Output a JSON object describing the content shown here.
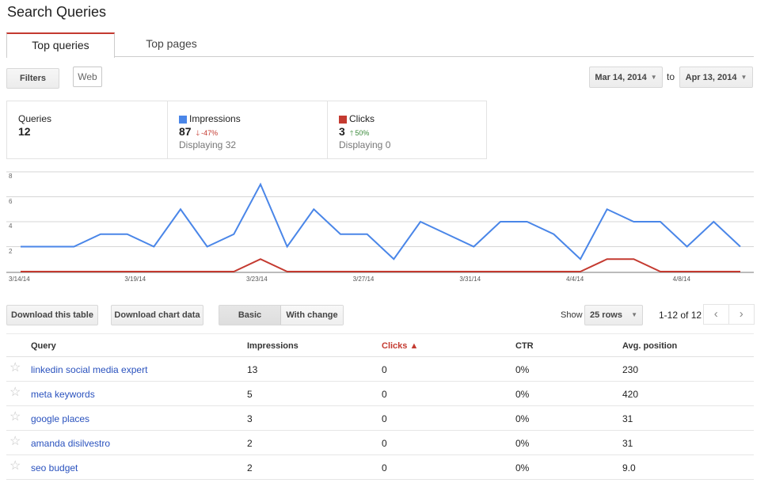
{
  "page": {
    "title": "Search Queries"
  },
  "tabs": [
    {
      "label": "Top queries",
      "active": true
    },
    {
      "label": "Top pages",
      "active": false
    }
  ],
  "filters": {
    "filters_label": "Filters",
    "web_label": "Web"
  },
  "date_range": {
    "start": "Mar 14, 2014",
    "to": "to",
    "end": "Apr 13, 2014"
  },
  "summary": {
    "queries": {
      "label": "Queries",
      "value": "12"
    },
    "impressions": {
      "label": "Impressions",
      "value": "87",
      "delta": "-47%",
      "delta_dir": "down",
      "sub": "Displaying 32",
      "color": "#4a86e8"
    },
    "clicks": {
      "label": "Clicks",
      "value": "3",
      "delta": "50%",
      "delta_dir": "up",
      "sub": "Displaying 0",
      "color": "#c43a30"
    }
  },
  "chart_data": {
    "type": "line",
    "title": "",
    "xlabel": "",
    "ylabel": "",
    "ylim": [
      0,
      8
    ],
    "y_ticks": [
      "8",
      "6",
      "4",
      "2"
    ],
    "x_tick_labels": [
      "3/14/14",
      "3/19/14",
      "3/23/14",
      "3/27/14",
      "3/31/14",
      "4/4/14",
      "4/8/14"
    ],
    "x": [
      "3/14",
      "3/15",
      "3/16",
      "3/17",
      "3/18",
      "3/19",
      "3/20",
      "3/21",
      "3/22",
      "3/23",
      "3/24",
      "3/25",
      "3/26",
      "3/27",
      "3/28",
      "3/29",
      "3/30",
      "3/31",
      "4/1",
      "4/2",
      "4/3",
      "4/4",
      "4/5",
      "4/6",
      "4/7",
      "4/8",
      "4/9",
      "4/10"
    ],
    "series": [
      {
        "name": "Impressions",
        "color": "#4a86e8",
        "values": [
          2,
          2,
          2,
          3,
          3,
          2,
          5,
          2,
          3,
          7,
          2,
          5,
          3,
          3,
          1,
          4,
          3,
          2,
          4,
          4,
          3,
          1,
          5,
          4,
          4,
          2,
          4,
          2
        ]
      },
      {
        "name": "Clicks",
        "color": "#c43a30",
        "values": [
          0,
          0,
          0,
          0,
          0,
          0,
          0,
          0,
          0,
          1,
          0,
          0,
          0,
          0,
          0,
          0,
          0,
          0,
          0,
          0,
          0,
          0,
          1,
          1,
          0,
          0,
          0,
          0
        ]
      }
    ],
    "grid": true,
    "legend": "summary boxes above chart"
  },
  "toolbar": {
    "download_table": "Download this table",
    "download_chart": "Download chart data",
    "view_basic": "Basic",
    "view_change": "With change",
    "show_label": "Show",
    "rows_value": "25 rows",
    "pager_text": "1-12 of 12",
    "prev": "‹",
    "next": "›"
  },
  "table": {
    "headers": {
      "query": "Query",
      "impressions": "Impressions",
      "clicks": "Clicks ▲",
      "ctr": "CTR",
      "position": "Avg. position"
    },
    "rows": [
      {
        "query": "linkedin social media expert",
        "impressions": "13",
        "clicks": "0",
        "ctr": "0%",
        "position": "230"
      },
      {
        "query": "meta keywords",
        "impressions": "5",
        "clicks": "0",
        "ctr": "0%",
        "position": "420"
      },
      {
        "query": "google places",
        "impressions": "3",
        "clicks": "0",
        "ctr": "0%",
        "position": "31"
      },
      {
        "query": "amanda disilvestro",
        "impressions": "2",
        "clicks": "0",
        "ctr": "0%",
        "position": "31"
      },
      {
        "query": "seo budget",
        "impressions": "2",
        "clicks": "0",
        "ctr": "0%",
        "position": "9.0"
      }
    ],
    "star_icon": "☆"
  }
}
